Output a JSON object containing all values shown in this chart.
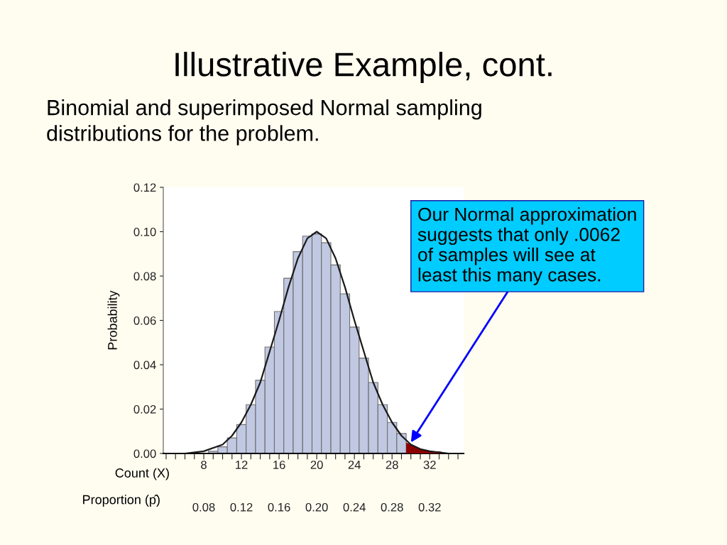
{
  "chart_data": {
    "type": "histogram",
    "title": "Illustrative Example, cont.",
    "subtitle": "Binomial and superimposed Normal sampling\ndistributions for the problem.",
    "xlabel": "Count (X)",
    "ylabel": "Probability",
    "x2label": "Proportion (p̂)",
    "bins": [
      8.5,
      9.5,
      10.5,
      11.5,
      12.5,
      13.5,
      14.5,
      15.5,
      16.5,
      17.5,
      18.5,
      19.5,
      20.5,
      21.5,
      22.5,
      23.5,
      24.5,
      25.5,
      26.5,
      27.5,
      28.5,
      29.5,
      30.5,
      31.5,
      32.5,
      33.5
    ],
    "values": [
      0.001,
      0.003,
      0.007,
      0.013,
      0.022,
      0.033,
      0.048,
      0.064,
      0.079,
      0.091,
      0.098,
      0.099,
      0.095,
      0.085,
      0.072,
      0.057,
      0.043,
      0.032,
      0.022,
      0.014,
      0.009,
      null,
      null,
      null,
      null
    ],
    "color": "#c0c8e2",
    "series": [
      {
        "type": "line",
        "color": "#1a1a1a",
        "x": [
          4,
          6,
          8,
          10,
          11,
          12,
          13,
          14,
          15,
          16,
          17,
          18,
          19,
          20,
          21,
          22,
          23,
          24,
          25,
          26,
          27,
          28,
          29,
          30,
          31,
          32,
          34,
          35.5
        ],
        "values": [
          0.0,
          0.0,
          0.001,
          0.004,
          0.008,
          0.014,
          0.022,
          0.032,
          0.046,
          0.06,
          0.075,
          0.088,
          0.097,
          0.1,
          0.097,
          0.088,
          0.075,
          0.06,
          0.046,
          0.032,
          0.022,
          0.014,
          0.008,
          0.004,
          0.002,
          0.001,
          0.0,
          0.0
        ]
      },
      {
        "type": "area",
        "color": "#8b0000",
        "x": [
          29.5,
          30,
          31,
          32,
          33,
          34,
          35.5
        ],
        "values": [
          0.005,
          0.004,
          0.002,
          0.001,
          0.001,
          0.0,
          0.0
        ]
      }
    ],
    "xlim": [
      3.7,
      35.6
    ],
    "ylim": [
      0,
      0.12
    ],
    "xticks": [
      {
        "value": 4,
        "label": null
      },
      {
        "value": 5,
        "label": null
      },
      {
        "value": 6,
        "label": null
      },
      {
        "value": 7,
        "label": null
      },
      8,
      {
        "value": 9,
        "label": null
      },
      {
        "value": 10,
        "label": null
      },
      {
        "value": 11,
        "label": null
      },
      12,
      {
        "value": 13,
        "label": null
      },
      {
        "value": 14,
        "label": null
      },
      {
        "value": 15,
        "label": null
      },
      16,
      {
        "value": 17,
        "label": null
      },
      {
        "value": 18,
        "label": null
      },
      {
        "value": 19,
        "label": null
      },
      20,
      {
        "value": 21,
        "label": null
      },
      {
        "value": 22,
        "label": null
      },
      {
        "value": 23,
        "label": null
      },
      24,
      {
        "value": 25,
        "label": null
      },
      {
        "value": 26,
        "label": null
      },
      {
        "value": 27,
        "label": null
      },
      28,
      {
        "value": 29,
        "label": null
      },
      {
        "value": 30,
        "label": null
      },
      {
        "value": 31,
        "label": null
      },
      32,
      {
        "value": 33,
        "label": null
      },
      {
        "value": 34,
        "label": null
      },
      {
        "value": 35,
        "label": null
      }
    ],
    "yticks": [
      {
        "value": 0,
        "label": "0.00"
      },
      {
        "value": 0.02,
        "label": "0.02"
      },
      {
        "value": 0.04,
        "label": "0.04"
      },
      {
        "value": 0.06,
        "label": "0.06"
      },
      {
        "value": 0.08,
        "label": "0.08"
      },
      {
        "value": 0.1,
        "label": "0.10"
      },
      {
        "value": 0.12,
        "label": "0.12"
      }
    ],
    "x2lim": [
      0.037,
      0.356
    ],
    "x2ticks": [
      {
        "value": 0.08,
        "label": "0.08"
      },
      {
        "value": 0.12,
        "label": "0.12"
      },
      {
        "value": 0.16,
        "label": "0.16"
      },
      {
        "value": 0.2,
        "label": "0.20"
      },
      {
        "value": 0.24,
        "label": "0.24"
      },
      {
        "value": 0.28,
        "label": "0.28"
      },
      {
        "value": 0.32,
        "label": "0.32"
      }
    ],
    "grid": false,
    "annotations": [
      {
        "text": "Our Normal approximation\nsuggests that only .0062\nof samples will see at\nleast this many cases.",
        "x": 30,
        "y": 0.005
      }
    ]
  }
}
